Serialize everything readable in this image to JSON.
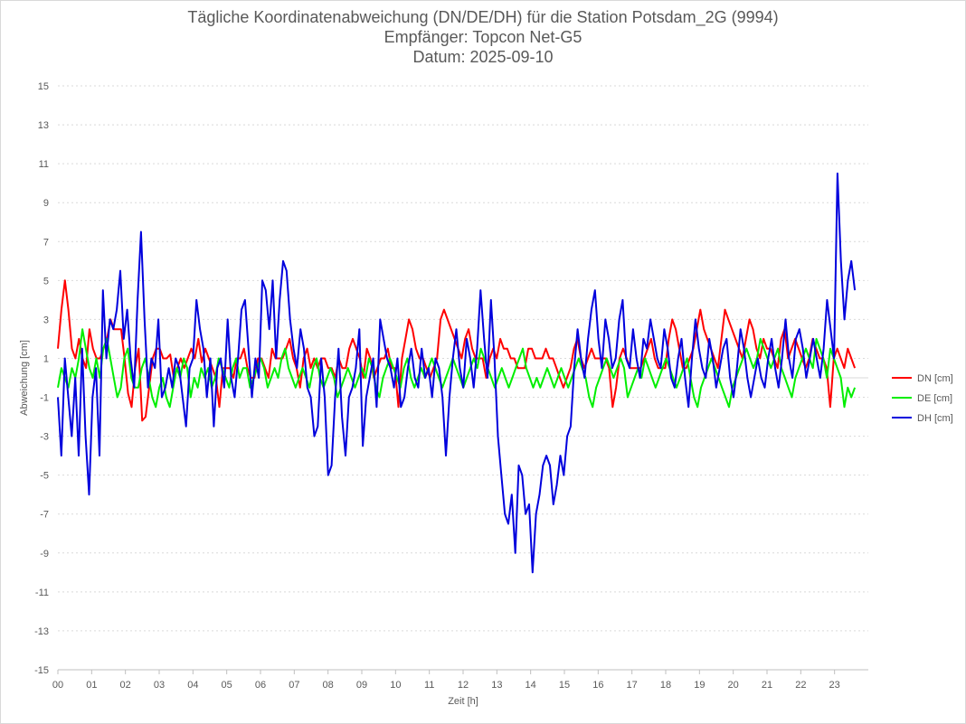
{
  "chart_data": {
    "type": "line",
    "title": "Tägliche Koordinatenabweichung (DN/DE/DH) für die Station Potsdam_2G (9994)",
    "subtitle": "Empfänger: Topcon Net-G5",
    "date_line": "Datum: 2025-09-10",
    "xlabel": "Zeit [h]",
    "ylabel": "Abweichung [cm]",
    "xlim": [
      0,
      24
    ],
    "ylim": [
      -15,
      15
    ],
    "x_ticks": [
      0,
      1,
      2,
      3,
      4,
      5,
      6,
      7,
      8,
      9,
      10,
      11,
      12,
      13,
      14,
      15,
      16,
      17,
      18,
      19,
      20,
      21,
      22,
      23
    ],
    "x_tick_labels": [
      "00",
      "01",
      "02",
      "03",
      "04",
      "05",
      "06",
      "07",
      "08",
      "09",
      "10",
      "11",
      "12",
      "13",
      "14",
      "15",
      "16",
      "17",
      "18",
      "19",
      "20",
      "21",
      "22",
      "23"
    ],
    "y_ticks": [
      15,
      13,
      11,
      9,
      7,
      5,
      3,
      1,
      -1,
      -3,
      -5,
      -7,
      -9,
      -11,
      -13,
      -15
    ],
    "y_tick_labels": [
      "15",
      "13",
      "11",
      "9",
      "7",
      "5",
      "3",
      "1",
      "-1",
      "-3",
      "-5",
      "-7",
      "-9",
      "-11",
      "-13",
      "-15"
    ],
    "grid": true,
    "legend_position": "right",
    "x_step_hours": 0.5,
    "series": [
      {
        "name": "DN [cm]",
        "color": "#ff0000",
        "values": [
          1.5,
          3.5,
          5.0,
          3.5,
          1.5,
          1.0,
          2.0,
          1.0,
          0.5,
          2.5,
          1.5,
          1.0,
          1.0,
          1.5,
          2.0,
          3.0,
          2.5,
          2.5,
          2.5,
          1.0,
          -0.8,
          -1.5,
          0.5,
          1.5,
          -2.2,
          -2.0,
          -0.5,
          1.0,
          1.5,
          1.5,
          1.0,
          1.0,
          1.2,
          0.0,
          0.5,
          1.0,
          0.5,
          1.0,
          1.5,
          1.0,
          2.0,
          0.8,
          1.5,
          1.0,
          0.5,
          0.0,
          -1.5,
          0.5,
          0.5,
          0.5,
          0.0,
          1.0,
          1.0,
          1.5,
          0.5,
          0.0,
          0.0,
          1.0,
          1.0,
          0.5,
          0.0,
          1.5,
          1.0,
          1.0,
          1.0,
          1.5,
          2.0,
          1.0,
          0.5,
          -0.5,
          1.0,
          1.5,
          0.5,
          1.0,
          0.5,
          1.0,
          1.0,
          0.5,
          0.5,
          0.0,
          1.0,
          0.5,
          0.5,
          1.5,
          2.0,
          1.5,
          1.0,
          0.0,
          1.5,
          1.0,
          0.0,
          0.5,
          1.0,
          1.0,
          1.5,
          0.5,
          0.5,
          -1.5,
          1.0,
          2.0,
          3.0,
          2.5,
          1.5,
          1.0,
          1.0,
          0.5,
          0.0,
          0.5,
          1.0,
          3.0,
          3.5,
          3.0,
          2.5,
          2.0,
          1.5,
          1.0,
          2.0,
          2.5,
          1.5,
          1.0,
          1.0,
          1.0,
          0.0,
          1.0,
          1.5,
          1.0,
          2.0,
          1.5,
          1.5,
          1.0,
          1.0,
          0.5,
          0.5,
          0.5,
          1.5,
          1.5,
          1.0,
          1.0,
          1.0,
          1.5,
          1.0,
          1.0,
          0.5,
          0.0,
          -0.5,
          0.0,
          0.5,
          1.5,
          2.0,
          1.0,
          0.5,
          1.0,
          1.5,
          1.0,
          1.0,
          1.0,
          1.0,
          0.5,
          -1.5,
          -0.5,
          1.0,
          1.5,
          1.0,
          0.5,
          0.5,
          0.5,
          0.5,
          1.0,
          1.5,
          2.0,
          1.0,
          0.5,
          0.5,
          0.5,
          2.0,
          3.0,
          2.5,
          1.5,
          0.5,
          0.5,
          1.0,
          1.5,
          2.5,
          3.5,
          2.5,
          2.0,
          1.5,
          1.0,
          0.5,
          2.0,
          3.5,
          3.0,
          2.5,
          2.0,
          1.5,
          1.0,
          2.0,
          3.0,
          2.5,
          1.5,
          1.0,
          2.0,
          1.5,
          1.5,
          1.0,
          0.5,
          2.0,
          2.5,
          1.0,
          1.5,
          2.0,
          1.5,
          1.0,
          0.5,
          1.0,
          2.0,
          1.5,
          1.0,
          1.0,
          0.5,
          -1.5,
          1.0,
          1.5,
          1.0,
          0.5,
          1.5,
          1.0,
          0.5
        ]
      },
      {
        "name": "DE [cm]",
        "color": "#00ee00",
        "values": [
          -0.5,
          0.5,
          0.0,
          -0.5,
          0.5,
          0.0,
          1.0,
          2.5,
          1.5,
          0.5,
          0.0,
          1.0,
          0.0,
          1.5,
          2.0,
          1.0,
          0.0,
          -1.0,
          -0.5,
          1.0,
          1.5,
          0.0,
          -0.5,
          -0.5,
          0.5,
          1.0,
          0.0,
          -1.0,
          -1.5,
          -0.5,
          0.0,
          -1.0,
          -1.5,
          -0.5,
          0.5,
          0.0,
          1.0,
          0.5,
          -1.0,
          0.0,
          -0.5,
          0.5,
          0.0,
          0.5,
          -0.5,
          0.0,
          1.0,
          0.5,
          0.0,
          -0.5,
          0.5,
          1.0,
          0.0,
          0.5,
          0.5,
          -0.5,
          0.0,
          0.5,
          1.0,
          0.5,
          -0.5,
          0.0,
          0.5,
          0.0,
          1.0,
          1.5,
          0.5,
          0.0,
          -0.5,
          0.0,
          0.5,
          0.0,
          -0.5,
          0.5,
          1.0,
          0.0,
          -0.5,
          0.0,
          0.5,
          0.0,
          -1.0,
          -0.5,
          0.0,
          0.5,
          0.0,
          -0.5,
          0.0,
          0.5,
          0.0,
          1.0,
          0.5,
          -0.5,
          -1.0,
          0.0,
          0.5,
          1.0,
          0.5,
          0.0,
          -0.5,
          0.5,
          1.0,
          0.0,
          -0.5,
          0.0,
          0.5,
          0.0,
          0.5,
          1.0,
          0.5,
          0.0,
          -0.5,
          0.0,
          0.5,
          1.0,
          0.5,
          0.0,
          -0.5,
          0.0,
          0.5,
          1.0,
          0.5,
          1.5,
          1.0,
          0.5,
          0.0,
          -0.5,
          0.0,
          0.5,
          0.0,
          -0.5,
          0.0,
          0.5,
          1.0,
          1.5,
          0.5,
          0.0,
          -0.5,
          0.0,
          -0.5,
          0.0,
          0.5,
          0.0,
          -0.5,
          0.0,
          0.5,
          0.0,
          -0.5,
          0.0,
          0.5,
          1.0,
          0.5,
          0.0,
          -1.0,
          -1.5,
          -0.5,
          0.0,
          0.5,
          1.0,
          0.5,
          0.0,
          0.5,
          1.0,
          0.5,
          -1.0,
          -0.5,
          0.0,
          0.5,
          0.0,
          1.0,
          0.5,
          0.0,
          -0.5,
          0.0,
          0.5,
          1.0,
          0.5,
          0.0,
          -0.5,
          0.0,
          0.5,
          1.0,
          0.0,
          -1.0,
          -1.5,
          -0.5,
          0.0,
          0.5,
          1.0,
          0.5,
          0.0,
          -0.5,
          -1.0,
          -1.5,
          -0.5,
          0.0,
          0.5,
          1.0,
          1.5,
          1.0,
          0.5,
          1.0,
          2.0,
          1.5,
          1.0,
          0.5,
          1.0,
          1.5,
          0.5,
          0.0,
          -0.5,
          -1.0,
          0.0,
          0.5,
          1.0,
          1.5,
          1.0,
          0.5,
          2.0,
          1.5,
          1.0,
          0.0,
          1.5,
          1.0,
          0.5,
          0.0,
          -1.5,
          -0.5,
          -1.0,
          -0.5
        ]
      },
      {
        "name": "DH [cm]",
        "color": "#0000dd",
        "values": [
          -1.0,
          -4.0,
          1.0,
          -1.0,
          -3.0,
          0.0,
          -4.0,
          1.5,
          -3.0,
          -6.0,
          -1.0,
          0.5,
          -4.0,
          4.5,
          1.0,
          3.0,
          2.5,
          3.5,
          5.5,
          2.0,
          3.5,
          1.0,
          -0.5,
          4.0,
          7.5,
          3.0,
          -0.5,
          1.0,
          0.5,
          3.0,
          -1.0,
          -0.5,
          0.5,
          -0.5,
          1.0,
          0.5,
          -1.0,
          -2.5,
          0.5,
          1.0,
          4.0,
          2.5,
          1.5,
          -1.0,
          1.0,
          -2.5,
          0.5,
          1.0,
          -0.5,
          3.0,
          0.0,
          -1.0,
          1.0,
          3.5,
          4.0,
          1.5,
          -1.0,
          1.0,
          0.0,
          5.0,
          4.5,
          2.5,
          5.0,
          1.0,
          4.0,
          6.0,
          5.5,
          3.0,
          1.5,
          0.5,
          2.5,
          1.5,
          -0.5,
          -1.0,
          -3.0,
          -2.5,
          1.0,
          -1.0,
          -5.0,
          -4.5,
          -1.0,
          1.5,
          -2.0,
          -4.0,
          -1.0,
          -0.5,
          0.5,
          2.5,
          -3.5,
          -1.0,
          0.0,
          1.0,
          -1.5,
          3.0,
          2.0,
          1.0,
          0.5,
          -0.5,
          1.0,
          -1.5,
          -1.0,
          0.5,
          1.5,
          0.0,
          -0.5,
          1.5,
          0.0,
          0.5,
          -1.0,
          1.0,
          0.5,
          -1.0,
          -4.0,
          -1.0,
          1.0,
          2.5,
          0.5,
          -0.5,
          2.0,
          1.0,
          -0.5,
          1.5,
          4.5,
          2.0,
          0.0,
          4.0,
          1.0,
          -3.0,
          -5.0,
          -7.0,
          -7.5,
          -6.0,
          -9.0,
          -4.5,
          -5.0,
          -7.0,
          -6.5,
          -10.0,
          -7.0,
          -6.0,
          -4.5,
          -4.0,
          -4.5,
          -6.5,
          -5.5,
          -4.0,
          -5.0,
          -3.0,
          -2.5,
          0.5,
          2.5,
          1.0,
          0.0,
          2.0,
          3.5,
          4.5,
          2.0,
          0.5,
          3.0,
          2.0,
          0.5,
          1.0,
          3.0,
          4.0,
          1.0,
          0.5,
          2.5,
          1.0,
          0.0,
          2.0,
          1.5,
          3.0,
          2.0,
          1.0,
          0.5,
          2.5,
          1.5,
          0.0,
          -0.5,
          1.0,
          2.0,
          0.0,
          -1.5,
          1.0,
          3.0,
          1.5,
          0.5,
          0.0,
          2.0,
          1.0,
          -0.5,
          0.5,
          1.5,
          2.0,
          0.0,
          -1.0,
          0.5,
          2.5,
          1.5,
          0.0,
          -1.0,
          0.0,
          1.0,
          0.0,
          -0.5,
          1.0,
          2.0,
          0.5,
          -0.5,
          1.0,
          3.0,
          1.0,
          0.0,
          2.0,
          2.5,
          1.5,
          0.0,
          1.0,
          2.0,
          1.0,
          0.0,
          1.5,
          4.0,
          2.5,
          1.0,
          10.5,
          6.0,
          3.0,
          5.0,
          6.0,
          4.5
        ]
      }
    ]
  }
}
